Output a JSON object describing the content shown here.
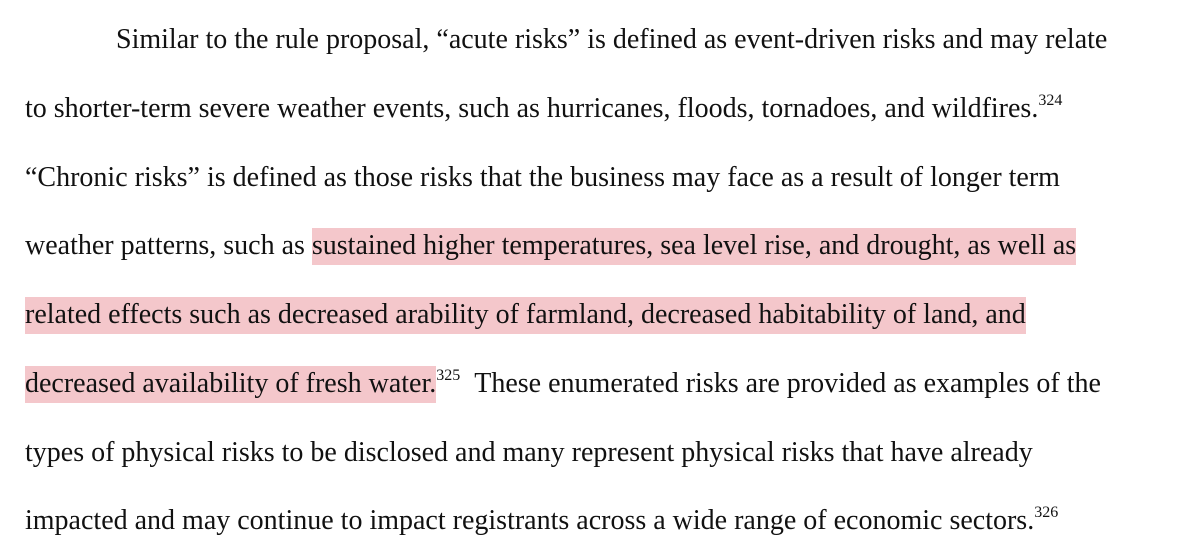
{
  "document": {
    "lines": [
      {
        "text": "Similar to the rule proposal, “acute risks” is defined as event-driven risks and may relate"
      },
      {
        "text": "to shorter-term severe weather events, such as hurricanes, floods, tornadoes, and wildfires.",
        "footnote": "324"
      },
      {
        "text": "“Chronic risks” is defined as those risks that the business may face as a result of longer term"
      },
      {
        "pre": "weather patterns, such as ",
        "highlight": "sustained higher temperatures, sea level rise, and drought, as well as"
      },
      {
        "highlight": "related effects such as decreased arability of farmland, decreased habitability of land, and"
      },
      {
        "highlight": "decreased availability of fresh water.",
        "footnote": "325",
        "post": "These enumerated risks are provided as examples of the"
      },
      {
        "text": "types of physical risks to be disclosed and many represent physical risks that have already"
      },
      {
        "text": "impacted and may continue to impact registrants across a wide range of economic sectors.",
        "footnote": "326"
      }
    ],
    "highlight_color": "#f4c7cb",
    "text_color": "#111111"
  }
}
